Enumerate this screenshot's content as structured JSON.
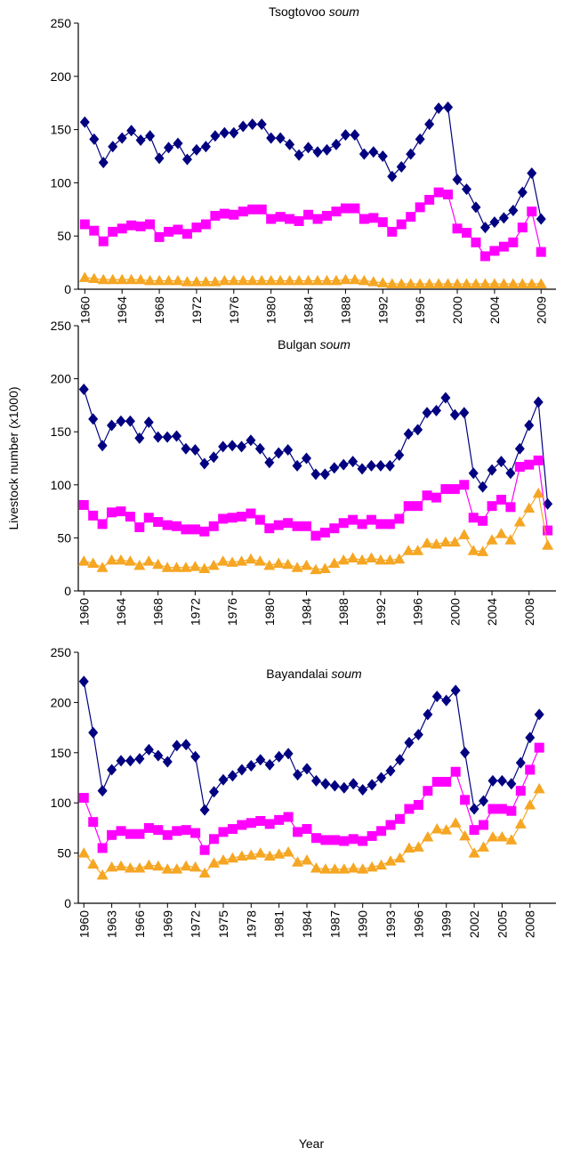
{
  "chart_data": [
    {
      "type": "line",
      "title": "Tsogtovoo soum",
      "x": [
        1960,
        1961,
        1962,
        1963,
        1964,
        1965,
        1966,
        1967,
        1968,
        1969,
        1970,
        1971,
        1972,
        1973,
        1974,
        1975,
        1976,
        1977,
        1978,
        1979,
        1980,
        1981,
        1982,
        1983,
        1984,
        1985,
        1986,
        1987,
        1988,
        1989,
        1990,
        1991,
        1992,
        1993,
        1994,
        1995,
        1996,
        1997,
        1998,
        1999,
        2000,
        2001,
        2002,
        2003,
        2004,
        2005,
        2006,
        2007,
        2008,
        2009
      ],
      "series": [
        {
          "color": "#000080",
          "marker": "diamond",
          "values": [
            157,
            141,
            119,
            134,
            142,
            149,
            140,
            144,
            123,
            133,
            137,
            122,
            131,
            134,
            144,
            147,
            147,
            153,
            155,
            155,
            142,
            142,
            136,
            126,
            133,
            129,
            131,
            136,
            145,
            145,
            127,
            129,
            125,
            106,
            115,
            127,
            141,
            155,
            170,
            171,
            103,
            94,
            77,
            58,
            63,
            67,
            74,
            91,
            109,
            66
          ]
        },
        {
          "color": "#ff00ff",
          "marker": "square",
          "values": [
            61,
            55,
            45,
            54,
            57,
            60,
            59,
            61,
            49,
            54,
            56,
            52,
            58,
            61,
            69,
            71,
            70,
            73,
            75,
            75,
            66,
            68,
            66,
            64,
            70,
            66,
            69,
            73,
            76,
            76,
            66,
            67,
            63,
            54,
            61,
            68,
            77,
            84,
            91,
            89,
            57,
            53,
            44,
            31,
            36,
            40,
            44,
            58,
            73,
            35
          ]
        },
        {
          "color": "#f5a623",
          "marker": "triangle",
          "values": [
            11,
            10,
            9,
            9,
            9,
            9,
            9,
            8,
            8,
            8,
            8,
            7,
            7,
            7,
            7,
            8,
            8,
            8,
            8,
            8,
            8,
            8,
            8,
            8,
            8,
            8,
            8,
            8,
            9,
            9,
            8,
            7,
            6,
            5,
            5,
            5,
            5,
            5,
            5,
            5,
            5,
            5,
            5,
            5,
            5,
            5,
            5,
            5,
            5,
            5
          ]
        }
      ],
      "xlim": [
        1959.3,
        2010.6
      ],
      "xticks": [
        1960,
        1964,
        1968,
        1972,
        1976,
        1980,
        1984,
        1988,
        1992,
        1996,
        2000,
        2004,
        2009
      ],
      "ylim": [
        0,
        250
      ],
      "yticks": [
        0,
        50,
        100,
        150,
        200,
        250
      ]
    },
    {
      "type": "line",
      "title": "Bulgan soum",
      "y_label": "Livestock number (x1000)",
      "x": [
        1960,
        1961,
        1962,
        1963,
        1964,
        1965,
        1966,
        1967,
        1968,
        1969,
        1970,
        1971,
        1972,
        1973,
        1974,
        1975,
        1976,
        1977,
        1978,
        1979,
        1980,
        1981,
        1982,
        1983,
        1984,
        1985,
        1986,
        1987,
        1988,
        1989,
        1990,
        1991,
        1992,
        1993,
        1994,
        1995,
        1996,
        1997,
        1998,
        1999,
        2000,
        2001,
        2002,
        2003,
        2004,
        2005,
        2006,
        2007,
        2008,
        2009,
        2010
      ],
      "series": [
        {
          "color": "#000080",
          "marker": "diamond",
          "values": [
            190,
            162,
            137,
            156,
            160,
            160,
            144,
            159,
            145,
            145,
            146,
            134,
            133,
            120,
            126,
            136,
            137,
            136,
            142,
            134,
            121,
            130,
            133,
            118,
            125,
            110,
            110,
            116,
            119,
            122,
            115,
            118,
            118,
            118,
            128,
            148,
            152,
            168,
            170,
            182,
            166,
            168,
            111,
            98,
            114,
            122,
            111,
            134,
            156,
            178,
            82
          ]
        },
        {
          "color": "#ff00ff",
          "marker": "square",
          "values": [
            81,
            71,
            63,
            74,
            75,
            70,
            60,
            69,
            65,
            62,
            61,
            58,
            58,
            56,
            61,
            68,
            69,
            70,
            73,
            67,
            59,
            62,
            64,
            61,
            61,
            52,
            55,
            59,
            64,
            67,
            63,
            67,
            63,
            63,
            68,
            80,
            80,
            90,
            88,
            96,
            96,
            100,
            69,
            66,
            80,
            86,
            79,
            117,
            119,
            123,
            57
          ]
        },
        {
          "color": "#f5a623",
          "marker": "triangle",
          "values": [
            28,
            26,
            22,
            29,
            29,
            28,
            24,
            28,
            25,
            22,
            22,
            22,
            23,
            21,
            24,
            28,
            27,
            28,
            30,
            28,
            24,
            26,
            25,
            22,
            24,
            20,
            21,
            26,
            29,
            31,
            29,
            31,
            29,
            29,
            30,
            38,
            38,
            45,
            44,
            46,
            46,
            53,
            38,
            37,
            48,
            54,
            48,
            65,
            78,
            92,
            43
          ]
        }
      ],
      "xlim": [
        1959.4,
        2010.9
      ],
      "xticks": [
        1960,
        1964,
        1968,
        1972,
        1976,
        1980,
        1984,
        1988,
        1992,
        1996,
        2000,
        2004,
        2008
      ],
      "ylim": [
        0,
        250
      ],
      "yticks": [
        0,
        50,
        100,
        150,
        200,
        250
      ]
    },
    {
      "type": "line",
      "title": "Bayandalai soum",
      "x_label": "Year",
      "x": [
        1960,
        1961,
        1962,
        1963,
        1964,
        1965,
        1966,
        1967,
        1968,
        1969,
        1970,
        1971,
        1972,
        1973,
        1974,
        1975,
        1976,
        1977,
        1978,
        1979,
        1980,
        1981,
        1982,
        1983,
        1984,
        1985,
        1986,
        1987,
        1988,
        1989,
        1990,
        1991,
        1992,
        1993,
        1994,
        1995,
        1996,
        1997,
        1998,
        1999,
        2000,
        2001,
        2002,
        2003,
        2004,
        2005,
        2006,
        2007,
        2008,
        2009
      ],
      "series": [
        {
          "color": "#000080",
          "marker": "diamond",
          "values": [
            221,
            170,
            112,
            133,
            142,
            142,
            144,
            153,
            147,
            141,
            157,
            158,
            146,
            93,
            111,
            123,
            127,
            133,
            137,
            143,
            138,
            146,
            149,
            128,
            134,
            122,
            119,
            117,
            115,
            119,
            113,
            118,
            125,
            132,
            143,
            160,
            168,
            188,
            206,
            202,
            212,
            150,
            94,
            102,
            122,
            122,
            119,
            140,
            165,
            188
          ]
        },
        {
          "color": "#ff00ff",
          "marker": "square",
          "values": [
            105,
            81,
            55,
            68,
            72,
            69,
            69,
            75,
            73,
            68,
            72,
            73,
            70,
            53,
            64,
            71,
            74,
            78,
            80,
            82,
            79,
            83,
            86,
            71,
            74,
            65,
            63,
            63,
            62,
            64,
            62,
            67,
            72,
            78,
            84,
            94,
            98,
            112,
            121,
            121,
            131,
            103,
            73,
            78,
            94,
            94,
            92,
            112,
            133,
            155
          ]
        },
        {
          "color": "#f5a623",
          "marker": "triangle",
          "values": [
            50,
            39,
            28,
            36,
            37,
            35,
            35,
            38,
            37,
            34,
            34,
            37,
            36,
            30,
            40,
            43,
            45,
            47,
            48,
            50,
            47,
            49,
            51,
            41,
            43,
            35,
            34,
            34,
            34,
            35,
            34,
            36,
            38,
            42,
            45,
            55,
            56,
            66,
            74,
            73,
            80,
            67,
            50,
            56,
            66,
            66,
            63,
            79,
            98,
            114
          ]
        }
      ],
      "xlim": [
        1959.4,
        2010.8
      ],
      "xticks": [
        1960,
        1963,
        1966,
        1969,
        1972,
        1975,
        1978,
        1981,
        1984,
        1987,
        1990,
        1993,
        1996,
        1999,
        2002,
        2005,
        2008
      ],
      "ylim": [
        0,
        250
      ],
      "yticks": [
        0,
        50,
        100,
        150,
        200,
        250
      ]
    }
  ]
}
